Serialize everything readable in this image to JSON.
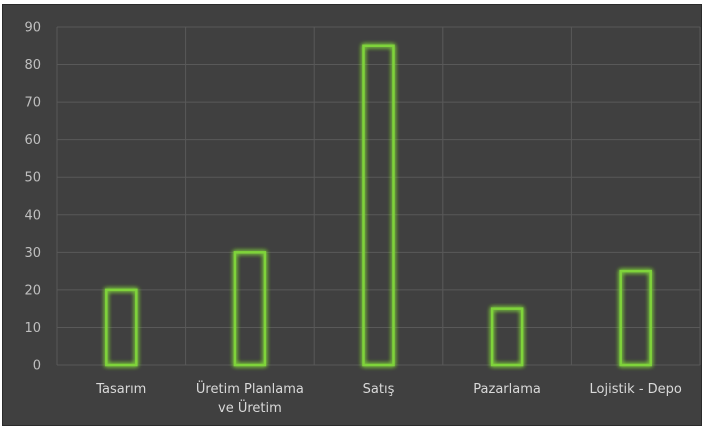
{
  "chart_data": {
    "type": "bar",
    "categories": [
      [
        "Tasarım"
      ],
      [
        "Üretim Planlama",
        "ve Üretim"
      ],
      [
        "Satış"
      ],
      [
        "Pazarlama"
      ],
      [
        "Lojistik - Depo"
      ]
    ],
    "values": [
      20,
      30,
      85,
      15,
      25
    ],
    "yticks": [
      "0",
      "10",
      "20",
      "30",
      "40",
      "50",
      "60",
      "70",
      "80",
      "90"
    ],
    "ylim": [
      0,
      90
    ],
    "grid": true,
    "colors": {
      "background": "#404040",
      "bar_outline": "#7fd33a",
      "grid": "#595959",
      "text": "#d9d9d9"
    }
  }
}
